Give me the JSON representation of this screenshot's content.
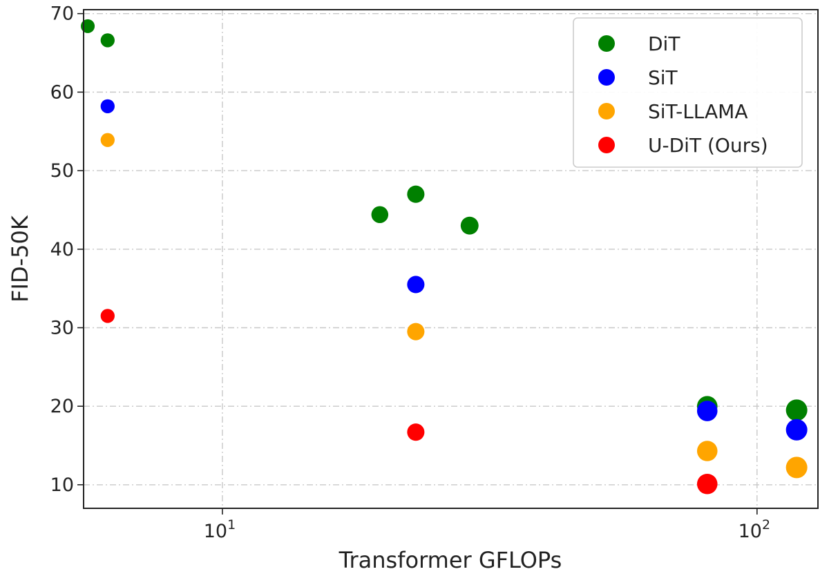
{
  "chart_data": {
    "type": "scatter",
    "title": "",
    "xlabel": "Transformer GFLOPs",
    "ylabel": "FID-50K",
    "x_scale": "log",
    "xlim": [
      5.5,
      130
    ],
    "ylim": [
      7,
      70.5
    ],
    "x_ticks": [
      {
        "value": 10,
        "base": "10",
        "exp": "1"
      },
      {
        "value": 100,
        "base": "10",
        "exp": "2"
      }
    ],
    "y_ticks": [
      10,
      20,
      30,
      40,
      50,
      60,
      70
    ],
    "y_tick_labels": [
      "10",
      "20",
      "30",
      "40",
      "50",
      "60",
      "70"
    ],
    "grid": true,
    "legend_position": "top-right",
    "series": [
      {
        "name": "DiT",
        "color": "#008000",
        "points": [
          {
            "x": 5.6,
            "y": 68.4
          },
          {
            "x": 6.1,
            "y": 66.6
          },
          {
            "x": 19.7,
            "y": 44.4
          },
          {
            "x": 23.0,
            "y": 47.0
          },
          {
            "x": 29.0,
            "y": 43.0
          },
          {
            "x": 80.7,
            "y": 20.0
          },
          {
            "x": 118.6,
            "y": 19.5
          }
        ]
      },
      {
        "name": "SiT",
        "color": "#0000ff",
        "points": [
          {
            "x": 6.1,
            "y": 58.2
          },
          {
            "x": 23.0,
            "y": 35.5
          },
          {
            "x": 80.7,
            "y": 19.4
          },
          {
            "x": 118.6,
            "y": 17.0
          }
        ]
      },
      {
        "name": "SiT-LLAMA",
        "color": "#ffa500",
        "points": [
          {
            "x": 6.1,
            "y": 53.9
          },
          {
            "x": 23.0,
            "y": 29.5
          },
          {
            "x": 80.7,
            "y": 14.3
          },
          {
            "x": 118.6,
            "y": 12.2
          }
        ]
      },
      {
        "name": "U-DiT (Ours)",
        "color": "#ff0000",
        "points": [
          {
            "x": 6.1,
            "y": 31.5
          },
          {
            "x": 23.0,
            "y": 16.7
          },
          {
            "x": 80.7,
            "y": 10.1
          }
        ]
      }
    ]
  }
}
